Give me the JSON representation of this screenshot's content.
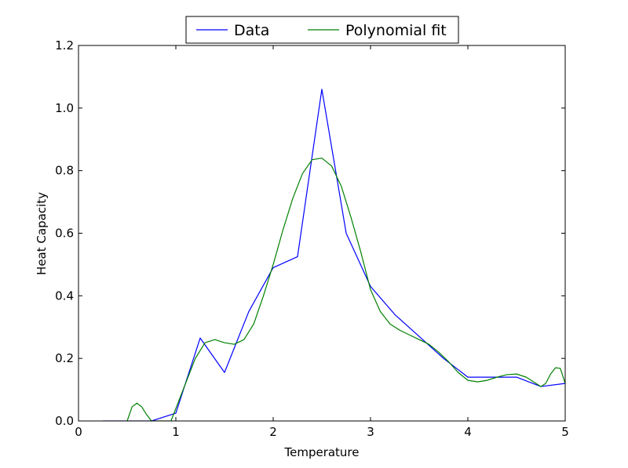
{
  "chart_data": {
    "type": "line",
    "title": "",
    "xlabel": "Temperature",
    "ylabel": "Heat Capacity",
    "xlim": [
      0,
      5
    ],
    "ylim": [
      0,
      1.2
    ],
    "xticks": [
      "0",
      "1",
      "2",
      "3",
      "4",
      "5"
    ],
    "yticks": [
      "0.0",
      "0.2",
      "0.4",
      "0.6",
      "0.8",
      "1.0",
      "1.2"
    ],
    "legend": {
      "placement": "top-center",
      "ncol": 2
    },
    "grid": false,
    "series": [
      {
        "name": "Data",
        "color": "#0000ff",
        "x": [
          0.25,
          0.5,
          0.75,
          1.0,
          1.25,
          1.5,
          1.75,
          2.0,
          2.25,
          2.5,
          2.75,
          3.0,
          3.25,
          3.5,
          3.75,
          4.0,
          4.25,
          4.5,
          4.75,
          5.0
        ],
        "y": [
          0.0,
          0.0,
          0.0,
          0.025,
          0.265,
          0.155,
          0.35,
          0.49,
          0.525,
          1.06,
          0.6,
          0.43,
          0.34,
          0.27,
          0.2,
          0.14,
          0.14,
          0.14,
          0.11,
          0.12
        ]
      },
      {
        "name": "Polynomial fit",
        "color": "#008000",
        "x": [
          0.5,
          0.55,
          0.6,
          0.65,
          0.7,
          0.75,
          0.8,
          0.9,
          0.95,
          1.0,
          1.1,
          1.2,
          1.3,
          1.4,
          1.5,
          1.6,
          1.7,
          1.8,
          1.9,
          2.0,
          2.1,
          2.2,
          2.3,
          2.4,
          2.5,
          2.6,
          2.7,
          2.8,
          2.9,
          3.0,
          3.1,
          3.2,
          3.3,
          3.4,
          3.5,
          3.6,
          3.7,
          3.8,
          3.9,
          4.0,
          4.1,
          4.2,
          4.3,
          4.4,
          4.5,
          4.6,
          4.7,
          4.75,
          4.8,
          4.85,
          4.9,
          4.95,
          5.0
        ],
        "y": [
          0.0,
          0.045,
          0.057,
          0.045,
          0.02,
          0.0,
          0.0,
          0.0,
          0.0,
          0.04,
          0.12,
          0.2,
          0.25,
          0.26,
          0.25,
          0.245,
          0.26,
          0.31,
          0.4,
          0.5,
          0.61,
          0.71,
          0.79,
          0.835,
          0.84,
          0.815,
          0.75,
          0.65,
          0.54,
          0.42,
          0.35,
          0.31,
          0.29,
          0.275,
          0.26,
          0.245,
          0.22,
          0.19,
          0.155,
          0.13,
          0.125,
          0.13,
          0.14,
          0.148,
          0.15,
          0.14,
          0.12,
          0.11,
          0.12,
          0.15,
          0.17,
          0.168,
          0.12
        ]
      }
    ]
  }
}
